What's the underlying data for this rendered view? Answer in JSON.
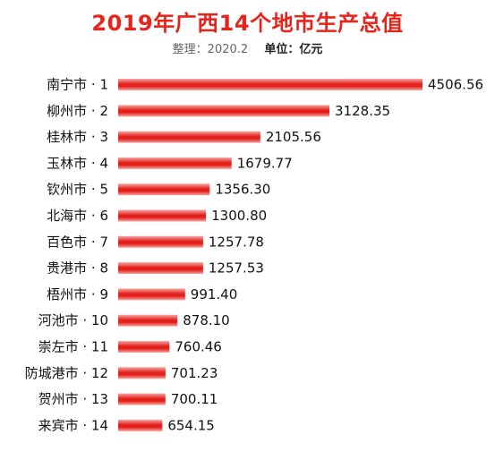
{
  "header": {
    "title": "2019年广西14个地市生产总值",
    "note": "整理：2020.2",
    "unit": "单位：亿元"
  },
  "chart_data": {
    "type": "bar",
    "orientation": "horizontal",
    "title": "2019年广西14个地市生产总值",
    "categories": [
      "南宁市 · 1",
      "柳州市 · 2",
      "桂林市 · 3",
      "玉林市 · 4",
      "钦州市 · 5",
      "北海市 · 6",
      "百色市 · 7",
      "贵港市 · 8",
      "梧州市 · 9",
      "河池市 · 10",
      "崇左市 · 11",
      "防城港市 · 12",
      "贺州市 · 13",
      "来宾市 · 14"
    ],
    "values": [
      4506.56,
      3128.35,
      2105.56,
      1679.77,
      1356.3,
      1300.8,
      1257.78,
      1257.53,
      991.4,
      878.1,
      760.46,
      701.23,
      700.11,
      654.15
    ],
    "value_labels": [
      "4506.56",
      "3128.35",
      "2105.56",
      "1679.77",
      "1356.30",
      "1300.80",
      "1257.78",
      "1257.53",
      "991.40",
      "878.10",
      "760.46",
      "701.23",
      "700.11",
      "654.15"
    ],
    "xlim": [
      0,
      4506.56
    ],
    "bar_color": "#e3201b",
    "bar_highlight": "#f6a7a3",
    "grid": false,
    "legend": "none"
  }
}
